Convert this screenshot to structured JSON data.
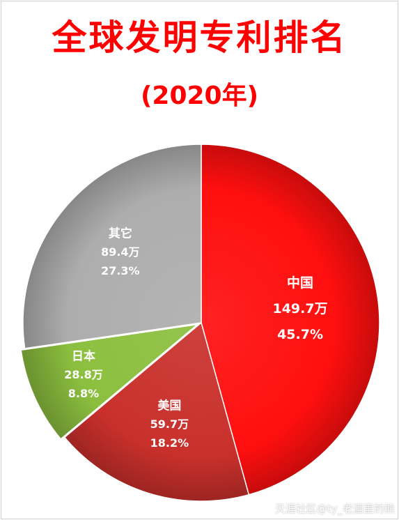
{
  "chart_data": {
    "type": "pie",
    "title": "全球发明专利排名",
    "subtitle": "(2020年)",
    "slices": [
      {
        "name": "中国",
        "value": 149.7,
        "value_label": "149.7万",
        "percent": 45.7,
        "percent_label": "45.7%",
        "color": "#ff0f0f"
      },
      {
        "name": "美国",
        "value": 59.7,
        "value_label": "59.7万",
        "percent": 18.2,
        "percent_label": "18.2%",
        "color": "#c9302c"
      },
      {
        "name": "日本",
        "value": 28.8,
        "value_label": "28.8万",
        "percent": 8.8,
        "percent_label": "8.8%",
        "color": "#8cbf3f"
      },
      {
        "name": "其它",
        "value": 89.4,
        "value_label": "89.4万",
        "percent": 27.3,
        "percent_label": "27.3%",
        "color": "#adadad"
      }
    ]
  },
  "watermark": "天涯社区@ty_老酒里的熊"
}
